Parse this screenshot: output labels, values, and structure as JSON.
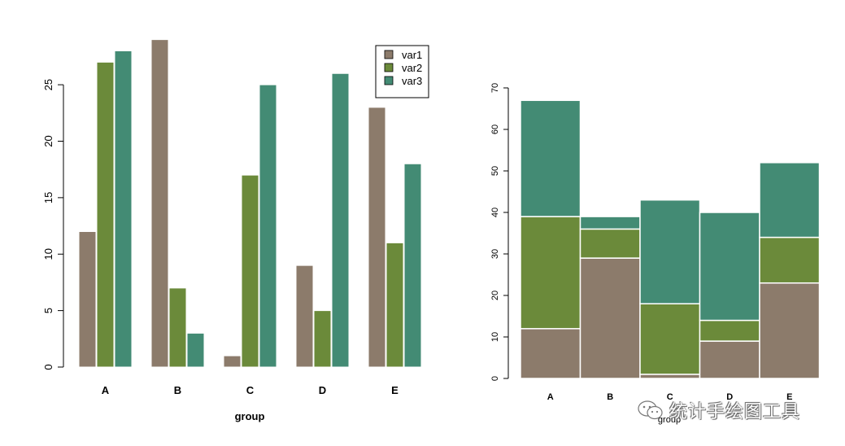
{
  "chart_data": [
    {
      "type": "bar",
      "mode": "grouped",
      "categories": [
        "A",
        "B",
        "C",
        "D",
        "E"
      ],
      "series": [
        {
          "name": "var1",
          "values": [
            12,
            29,
            1,
            9,
            23
          ]
        },
        {
          "name": "var2",
          "values": [
            27,
            7,
            17,
            5,
            11
          ]
        },
        {
          "name": "var3",
          "values": [
            28,
            3,
            25,
            26,
            18
          ]
        }
      ],
      "xlabel": "group",
      "ylabel": "",
      "ylim": [
        0,
        29
      ],
      "yticks": [
        0,
        5,
        10,
        15,
        20,
        25
      ],
      "legend": "top-right",
      "grid": false
    },
    {
      "type": "bar",
      "mode": "stacked",
      "categories": [
        "A",
        "B",
        "C",
        "D",
        "E"
      ],
      "series": [
        {
          "name": "var1",
          "values": [
            12,
            29,
            1,
            9,
            23
          ]
        },
        {
          "name": "var2",
          "values": [
            27,
            7,
            17,
            5,
            11
          ]
        },
        {
          "name": "var3",
          "values": [
            28,
            3,
            25,
            26,
            18
          ]
        }
      ],
      "xlabel": "group",
      "ylabel": "",
      "ylim": [
        0,
        70
      ],
      "yticks": [
        0,
        10,
        20,
        30,
        40,
        50,
        60,
        70
      ],
      "legend": "none",
      "grid": false
    }
  ],
  "colors": {
    "var1": "#8c7b6b",
    "var2": "#6b8a3a",
    "var3": "#438b74"
  },
  "watermark": {
    "icon": "wechat-icon",
    "text": "统计手绘图工具"
  }
}
